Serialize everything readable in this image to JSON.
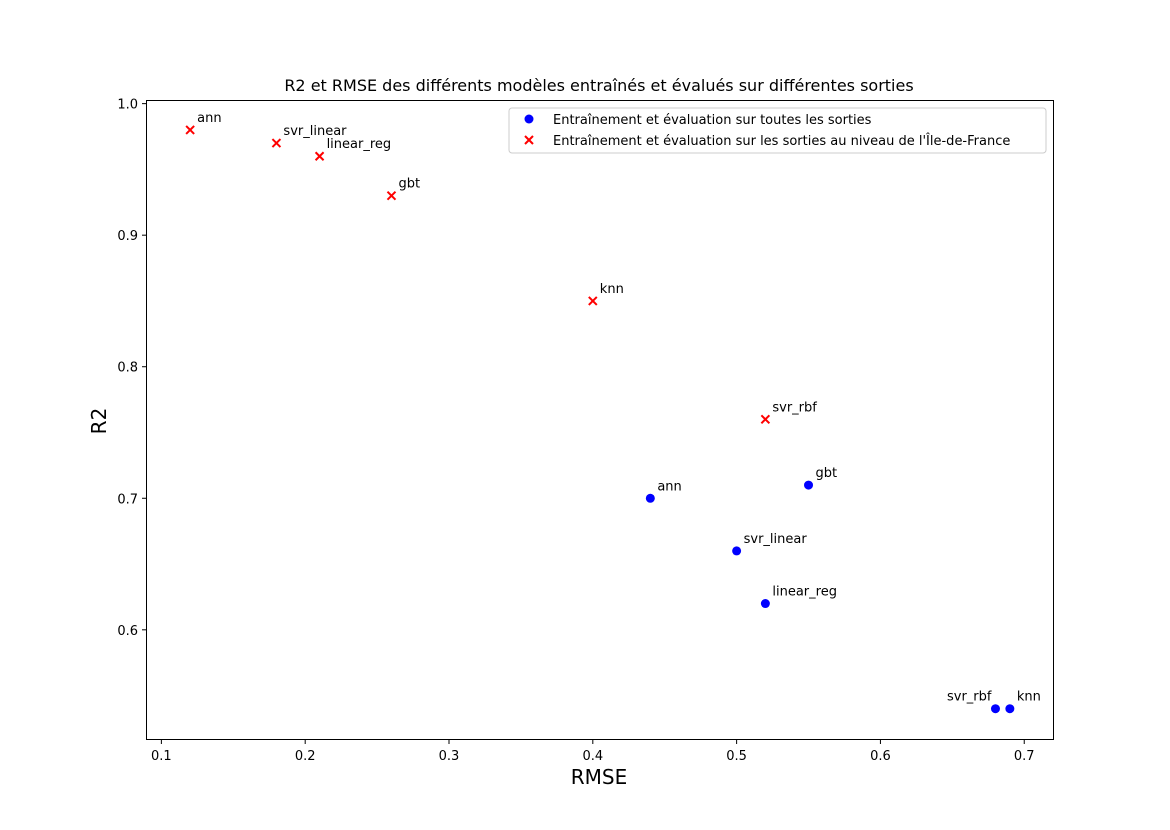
{
  "chart_data": {
    "type": "scatter",
    "title": "R2 et RMSE des différents modèles entraînés et évalués sur différentes sorties",
    "xlabel": "RMSE",
    "ylabel": "R2",
    "xlim": [
      0.09,
      0.72
    ],
    "ylim": [
      0.517,
      1.002
    ],
    "xticks": [
      "0.1",
      "0.2",
      "0.3",
      "0.4",
      "0.5",
      "0.6",
      "0.7"
    ],
    "yticks": [
      "0.6",
      "0.7",
      "0.8",
      "0.9",
      "1.0"
    ],
    "grid": false,
    "legend_position": "top-right",
    "series": [
      {
        "name": "Entraînement et évaluation sur toutes les sorties",
        "marker": "circle",
        "color": "#0000ff",
        "points": [
          {
            "label": "ann",
            "x": 0.44,
            "y": 0.7
          },
          {
            "label": "svr_linear",
            "x": 0.5,
            "y": 0.66
          },
          {
            "label": "linear_reg",
            "x": 0.52,
            "y": 0.62
          },
          {
            "label": "gbt",
            "x": 0.55,
            "y": 0.71
          },
          {
            "label": "svr_rbf",
            "x": 0.68,
            "y": 0.54
          },
          {
            "label": "knn",
            "x": 0.69,
            "y": 0.54
          }
        ]
      },
      {
        "name": "Entraînement et évaluation sur les sorties au niveau de l'Île-de-France",
        "marker": "x",
        "color": "#ff0000",
        "points": [
          {
            "label": "ann",
            "x": 0.12,
            "y": 0.98
          },
          {
            "label": "svr_linear",
            "x": 0.18,
            "y": 0.97
          },
          {
            "label": "linear_reg",
            "x": 0.21,
            "y": 0.96
          },
          {
            "label": "gbt",
            "x": 0.26,
            "y": 0.93
          },
          {
            "label": "knn",
            "x": 0.4,
            "y": 0.85
          },
          {
            "label": "svr_rbf",
            "x": 0.52,
            "y": 0.76
          }
        ]
      }
    ]
  }
}
